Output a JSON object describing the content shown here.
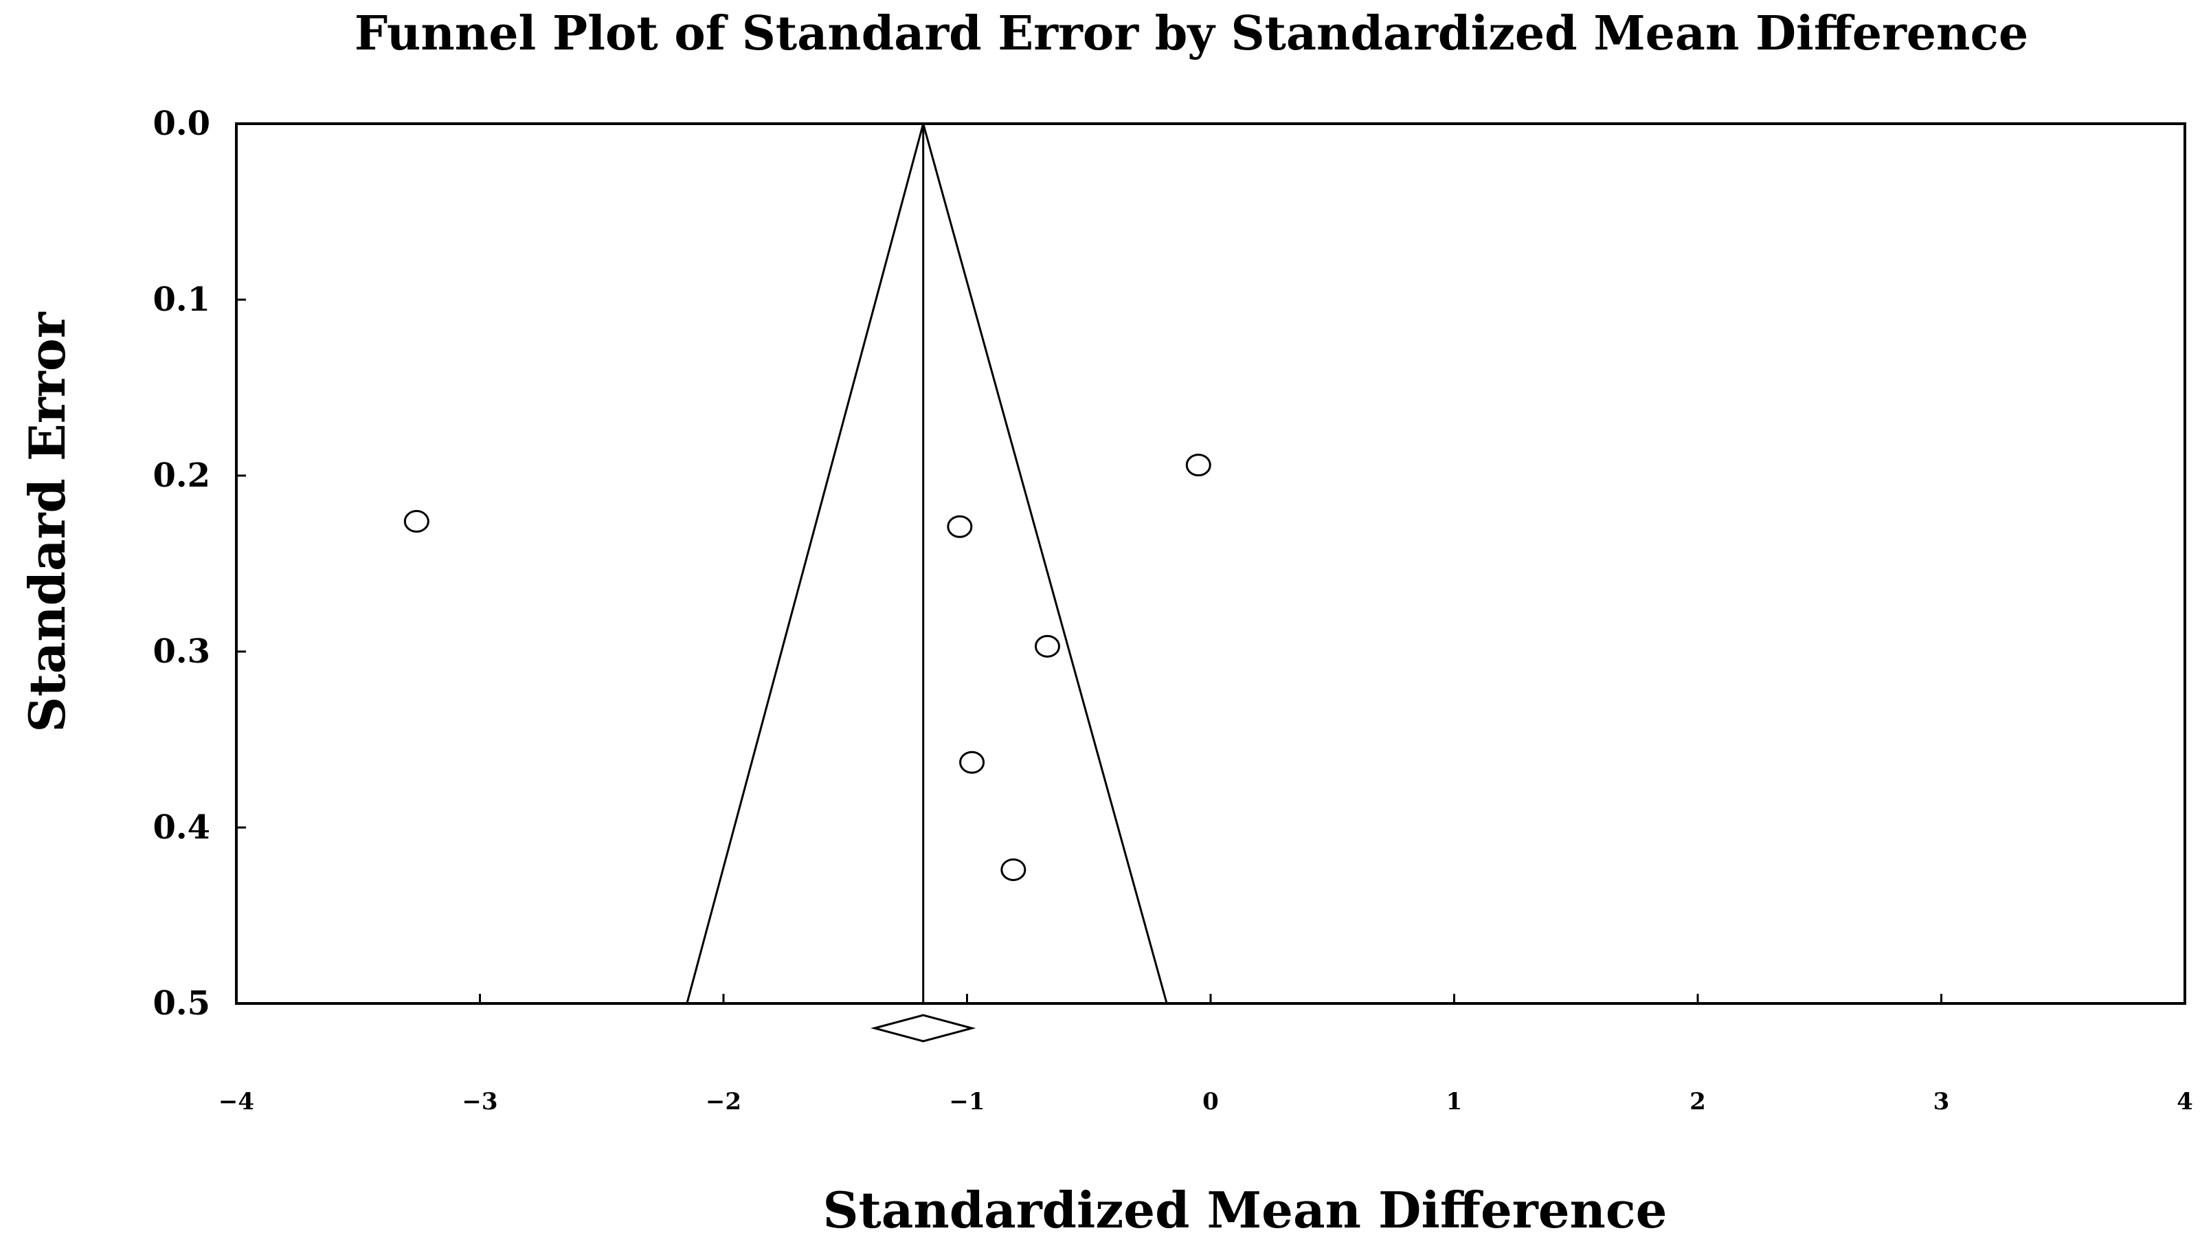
{
  "chart_data": {
    "type": "scatter",
    "title": "Funnel Plot of Standard Error by Standardized Mean Difference",
    "xlabel": "Standardized Mean Difference",
    "ylabel": "Standard Error",
    "xlim": [
      -4,
      4
    ],
    "ylim": [
      0.0,
      0.5
    ],
    "y_inverted": true,
    "grid": false,
    "x_ticks": [
      -4,
      -3,
      -2,
      -1,
      0,
      1,
      2,
      3,
      4
    ],
    "x_tick_labels": [
      "−4",
      "−3",
      "−2",
      "−1",
      "0",
      "1",
      "2",
      "3",
      "4"
    ],
    "y_ticks": [
      0.0,
      0.1,
      0.2,
      0.3,
      0.4,
      0.5
    ],
    "y_tick_labels": [
      "0.0",
      "0.1",
      "0.2",
      "0.3",
      "0.4",
      "0.5"
    ],
    "pooled_estimate": -1.18,
    "funnel_bottom_x": [
      -2.15,
      -0.18
    ],
    "summary_diamond": {
      "center": -1.18,
      "lower": -1.38,
      "upper": -0.98
    },
    "points": [
      {
        "x": -3.26,
        "y": 0.226
      },
      {
        "x": -0.05,
        "y": 0.194
      },
      {
        "x": -1.03,
        "y": 0.229
      },
      {
        "x": -0.67,
        "y": 0.297
      },
      {
        "x": -0.98,
        "y": 0.363
      },
      {
        "x": -0.81,
        "y": 0.424
      }
    ]
  },
  "colors": {
    "stroke": "#000000",
    "background": "#ffffff",
    "marker_fill": "#ffffff"
  }
}
